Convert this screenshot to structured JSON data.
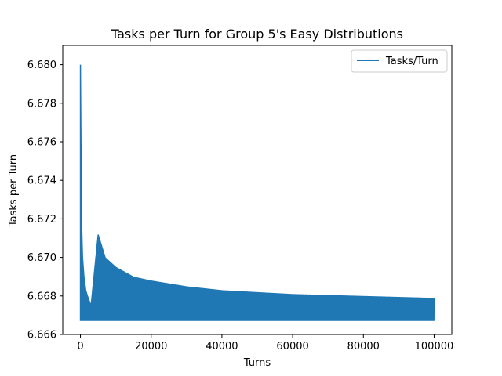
{
  "chart_data": {
    "type": "line",
    "title": "Tasks per Turn for Group 5's Easy Distributions",
    "xlabel": "Turns",
    "ylabel": "Tasks per Turn",
    "xlim": [
      -5000,
      105000
    ],
    "ylim": [
      6.666,
      6.681
    ],
    "xticks": [
      0,
      20000,
      40000,
      60000,
      80000,
      100000
    ],
    "xtick_labels": [
      "0",
      "20000",
      "40000",
      "60000",
      "80000",
      "100000"
    ],
    "yticks": [
      6.666,
      6.668,
      6.67,
      6.672,
      6.674,
      6.676,
      6.678,
      6.68
    ],
    "ytick_labels": [
      "6.666",
      "6.668",
      "6.670",
      "6.672",
      "6.674",
      "6.676",
      "6.678",
      "6.680"
    ],
    "grid": false,
    "legend": {
      "position": "upper right",
      "entries": [
        "Tasks/Turn"
      ]
    },
    "series": [
      {
        "name": "Tasks/Turn",
        "color": "#1f77b4",
        "description_shape": "oscillating sequence with upper envelope decaying toward ~6.6667 and lower bound ~6.6667",
        "upper_envelope": [
          [
            0,
            6.68
          ],
          [
            300,
            6.672
          ],
          [
            600,
            6.67
          ],
          [
            1000,
            6.669
          ],
          [
            1500,
            6.6683
          ],
          [
            2000,
            6.668
          ],
          [
            3000,
            6.6675
          ],
          [
            5000,
            6.6712
          ],
          [
            7000,
            6.67
          ],
          [
            10000,
            6.6695
          ],
          [
            15000,
            6.669
          ],
          [
            20000,
            6.6688
          ],
          [
            30000,
            6.6685
          ],
          [
            40000,
            6.6683
          ],
          [
            60000,
            6.6681
          ],
          [
            80000,
            6.668
          ],
          [
            100000,
            6.6679
          ]
        ],
        "lower_envelope": [
          [
            0,
            6.6667
          ],
          [
            100000,
            6.6667
          ]
        ],
        "x_range": [
          0,
          100000
        ]
      }
    ]
  }
}
